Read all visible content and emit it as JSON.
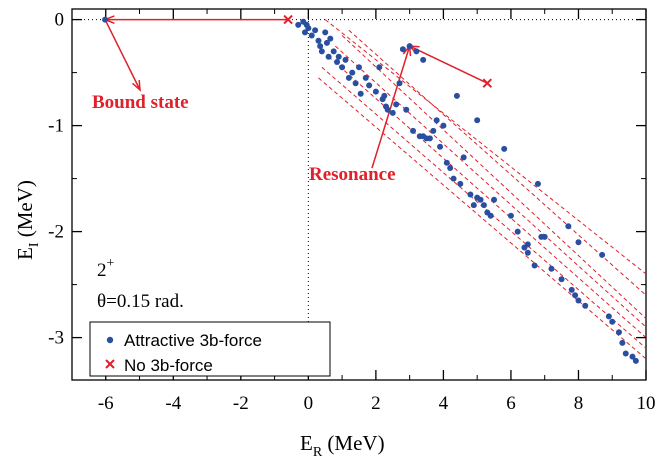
{
  "chart_data": {
    "type": "scatter",
    "xlabel_main": "E",
    "xlabel_sub": "R",
    "xlabel_unit": " (MeV)",
    "ylabel_main": "E",
    "ylabel_sub": "I",
    "ylabel_unit": " (MeV)",
    "xlim": [
      -7,
      10
    ],
    "ylim": [
      -3.4,
      0.1
    ],
    "xticks": [
      -6,
      -4,
      -2,
      0,
      2,
      4,
      6,
      8,
      10
    ],
    "xtick_labels": [
      "-6",
      "-4",
      "-2",
      "0",
      "2",
      "4",
      "6",
      "8",
      "10"
    ],
    "yticks": [
      0,
      -1,
      -2,
      -3
    ],
    "ytick_labels": [
      "0",
      "-1",
      "-2",
      "-3"
    ],
    "info_state": "2",
    "info_state_sup": "+",
    "info_theta": "θ=0.15 rad.",
    "annotations": {
      "bound_state": "Bound state",
      "resonance": "Resonance"
    },
    "colors": {
      "attractive": "#2a4fa0",
      "no3b": "#e0202a",
      "guides": "#e0202a"
    },
    "legend": {
      "placement": "bottom-left",
      "entries": [
        "Attractive 3b-force",
        "No 3b-force"
      ]
    },
    "guide_lines": [
      [
        [
          0.5,
          -0.0
        ],
        [
          10,
          -2.4
        ]
      ],
      [
        [
          1.2,
          -0.1
        ],
        [
          10,
          -2.6
        ]
      ],
      [
        [
          1.0,
          -0.15
        ],
        [
          10,
          -2.82
        ]
      ],
      [
        [
          0.8,
          -0.25
        ],
        [
          10,
          -2.9
        ]
      ],
      [
        [
          0.6,
          -0.35
        ],
        [
          10,
          -3.0
        ]
      ],
      [
        [
          0.4,
          -0.45
        ],
        [
          10,
          -3.1
        ]
      ],
      [
        [
          0.3,
          -0.55
        ],
        [
          10,
          -3.2
        ]
      ]
    ],
    "series": [
      {
        "name": "Attractive 3b-force",
        "marker": "circle",
        "points": [
          [
            -6.02,
            0.0
          ],
          [
            -0.3,
            -0.05
          ],
          [
            -0.15,
            -0.02
          ],
          [
            -0.05,
            -0.05
          ],
          [
            0.0,
            -0.08
          ],
          [
            -0.1,
            -0.12
          ],
          [
            0.1,
            -0.15
          ],
          [
            0.2,
            -0.1
          ],
          [
            0.3,
            -0.2
          ],
          [
            0.35,
            -0.25
          ],
          [
            0.4,
            -0.3
          ],
          [
            0.5,
            -0.12
          ],
          [
            0.55,
            -0.22
          ],
          [
            0.6,
            -0.35
          ],
          [
            0.65,
            -0.18
          ],
          [
            0.75,
            -0.3
          ],
          [
            0.85,
            -0.4
          ],
          [
            0.9,
            -0.35
          ],
          [
            1.0,
            -0.45
          ],
          [
            1.1,
            -0.38
          ],
          [
            1.2,
            -0.55
          ],
          [
            1.3,
            -0.5
          ],
          [
            1.4,
            -0.6
          ],
          [
            1.5,
            -0.45
          ],
          [
            1.55,
            -0.7
          ],
          [
            1.7,
            -0.55
          ],
          [
            1.8,
            -0.62
          ],
          [
            2.0,
            -0.68
          ],
          [
            2.1,
            -0.45
          ],
          [
            2.2,
            -0.75
          ],
          [
            2.3,
            -0.82
          ],
          [
            2.35,
            -0.85
          ],
          [
            2.5,
            -0.88
          ],
          [
            2.6,
            -0.8
          ],
          [
            2.7,
            -0.6
          ],
          [
            2.8,
            -0.28
          ],
          [
            2.9,
            -0.85
          ],
          [
            3.0,
            -0.25
          ],
          [
            3.1,
            -1.05
          ],
          [
            3.2,
            -0.3
          ],
          [
            3.3,
            -1.1
          ],
          [
            3.4,
            -0.38
          ],
          [
            3.5,
            -1.12
          ],
          [
            3.6,
            -1.12
          ],
          [
            3.7,
            -1.05
          ],
          [
            3.8,
            -0.95
          ],
          [
            3.9,
            -1.2
          ],
          [
            4.0,
            -1.0
          ],
          [
            4.1,
            -1.35
          ],
          [
            4.2,
            -1.4
          ],
          [
            4.3,
            -1.5
          ],
          [
            4.4,
            -0.72
          ],
          [
            4.5,
            -1.55
          ],
          [
            4.6,
            -1.3
          ],
          [
            4.8,
            -1.65
          ],
          [
            5.0,
            -0.95
          ],
          [
            5.1,
            -1.7
          ],
          [
            5.2,
            -1.75
          ],
          [
            5.3,
            -1.82
          ],
          [
            5.4,
            -1.85
          ],
          [
            5.5,
            -1.7
          ],
          [
            5.8,
            -1.22
          ],
          [
            6.0,
            -1.85
          ],
          [
            6.2,
            -2.0
          ],
          [
            6.4,
            -2.15
          ],
          [
            6.5,
            -2.2
          ],
          [
            6.7,
            -2.32
          ],
          [
            6.8,
            -1.55
          ],
          [
            6.9,
            -2.05
          ],
          [
            7.0,
            -2.05
          ],
          [
            7.2,
            -2.35
          ],
          [
            7.5,
            -2.45
          ],
          [
            7.7,
            -1.95
          ],
          [
            7.8,
            -2.55
          ],
          [
            7.9,
            -2.6
          ],
          [
            8.0,
            -2.65
          ],
          [
            8.2,
            -2.7
          ],
          [
            8.7,
            -2.22
          ],
          [
            8.9,
            -2.8
          ],
          [
            9.0,
            -2.85
          ],
          [
            9.2,
            -2.95
          ],
          [
            9.3,
            -3.05
          ],
          [
            9.4,
            -3.15
          ],
          [
            9.6,
            -3.18
          ],
          [
            9.7,
            -3.22
          ],
          [
            8.0,
            -2.1
          ],
          [
            5.0,
            -1.68
          ],
          [
            6.5,
            -2.12
          ],
          [
            4.9,
            -1.75
          ],
          [
            3.4,
            -1.1
          ],
          [
            2.25,
            -0.72
          ]
        ]
      },
      {
        "name": "No 3b-force",
        "marker": "x",
        "points": [
          [
            -0.6,
            0.0
          ],
          [
            5.3,
            -0.6
          ]
        ]
      }
    ]
  }
}
